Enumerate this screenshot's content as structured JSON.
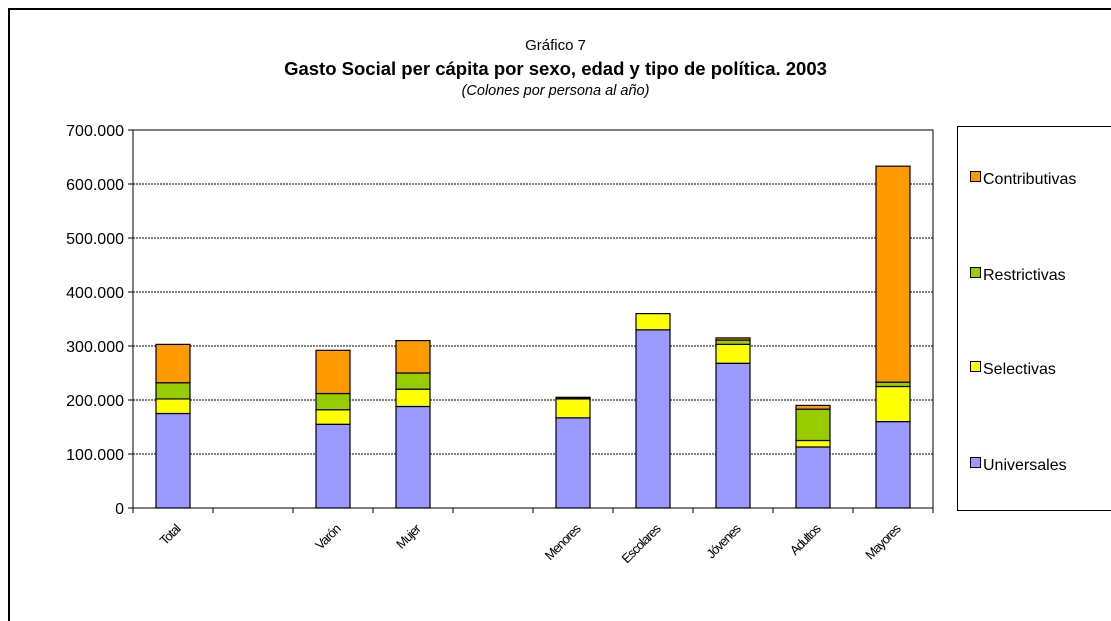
{
  "chart_data": {
    "type": "bar",
    "stacked": true,
    "pretitle": "Gráfico 7",
    "title": "Gasto Social per cápita por sexo, edad y tipo de política. 2003",
    "subtitle": "(Colones por persona al año)",
    "categories": [
      "Total",
      "",
      "Varón",
      "Mujer",
      "",
      "Menores",
      "Escolares",
      "Jóvenes",
      "Adultos",
      "Mayores"
    ],
    "ylim": [
      0,
      700000
    ],
    "yticks": [
      "0",
      "100.000",
      "200.000",
      "300.000",
      "400.000",
      "500.000",
      "600.000",
      "700.000"
    ],
    "ytick_values": [
      0,
      100000,
      200000,
      300000,
      400000,
      500000,
      600000,
      700000
    ],
    "grid": true,
    "legend_position": "right",
    "series": [
      {
        "name": "Universales",
        "color": "#9999ff",
        "values": [
          175000,
          null,
          155000,
          188000,
          null,
          167000,
          330000,
          268000,
          113000,
          160000
        ]
      },
      {
        "name": "Selectivas",
        "color": "#ffff00",
        "values": [
          27000,
          null,
          27000,
          32000,
          null,
          35000,
          30000,
          35000,
          12000,
          65000
        ]
      },
      {
        "name": "Restrictivas",
        "color": "#99cc00",
        "values": [
          30000,
          null,
          30000,
          30000,
          null,
          2000,
          0,
          8000,
          58000,
          8000
        ]
      },
      {
        "name": "Contributivas",
        "color": "#ff9900",
        "values": [
          71000,
          null,
          80000,
          60000,
          null,
          1000,
          0,
          4000,
          7000,
          400000
        ]
      }
    ]
  }
}
